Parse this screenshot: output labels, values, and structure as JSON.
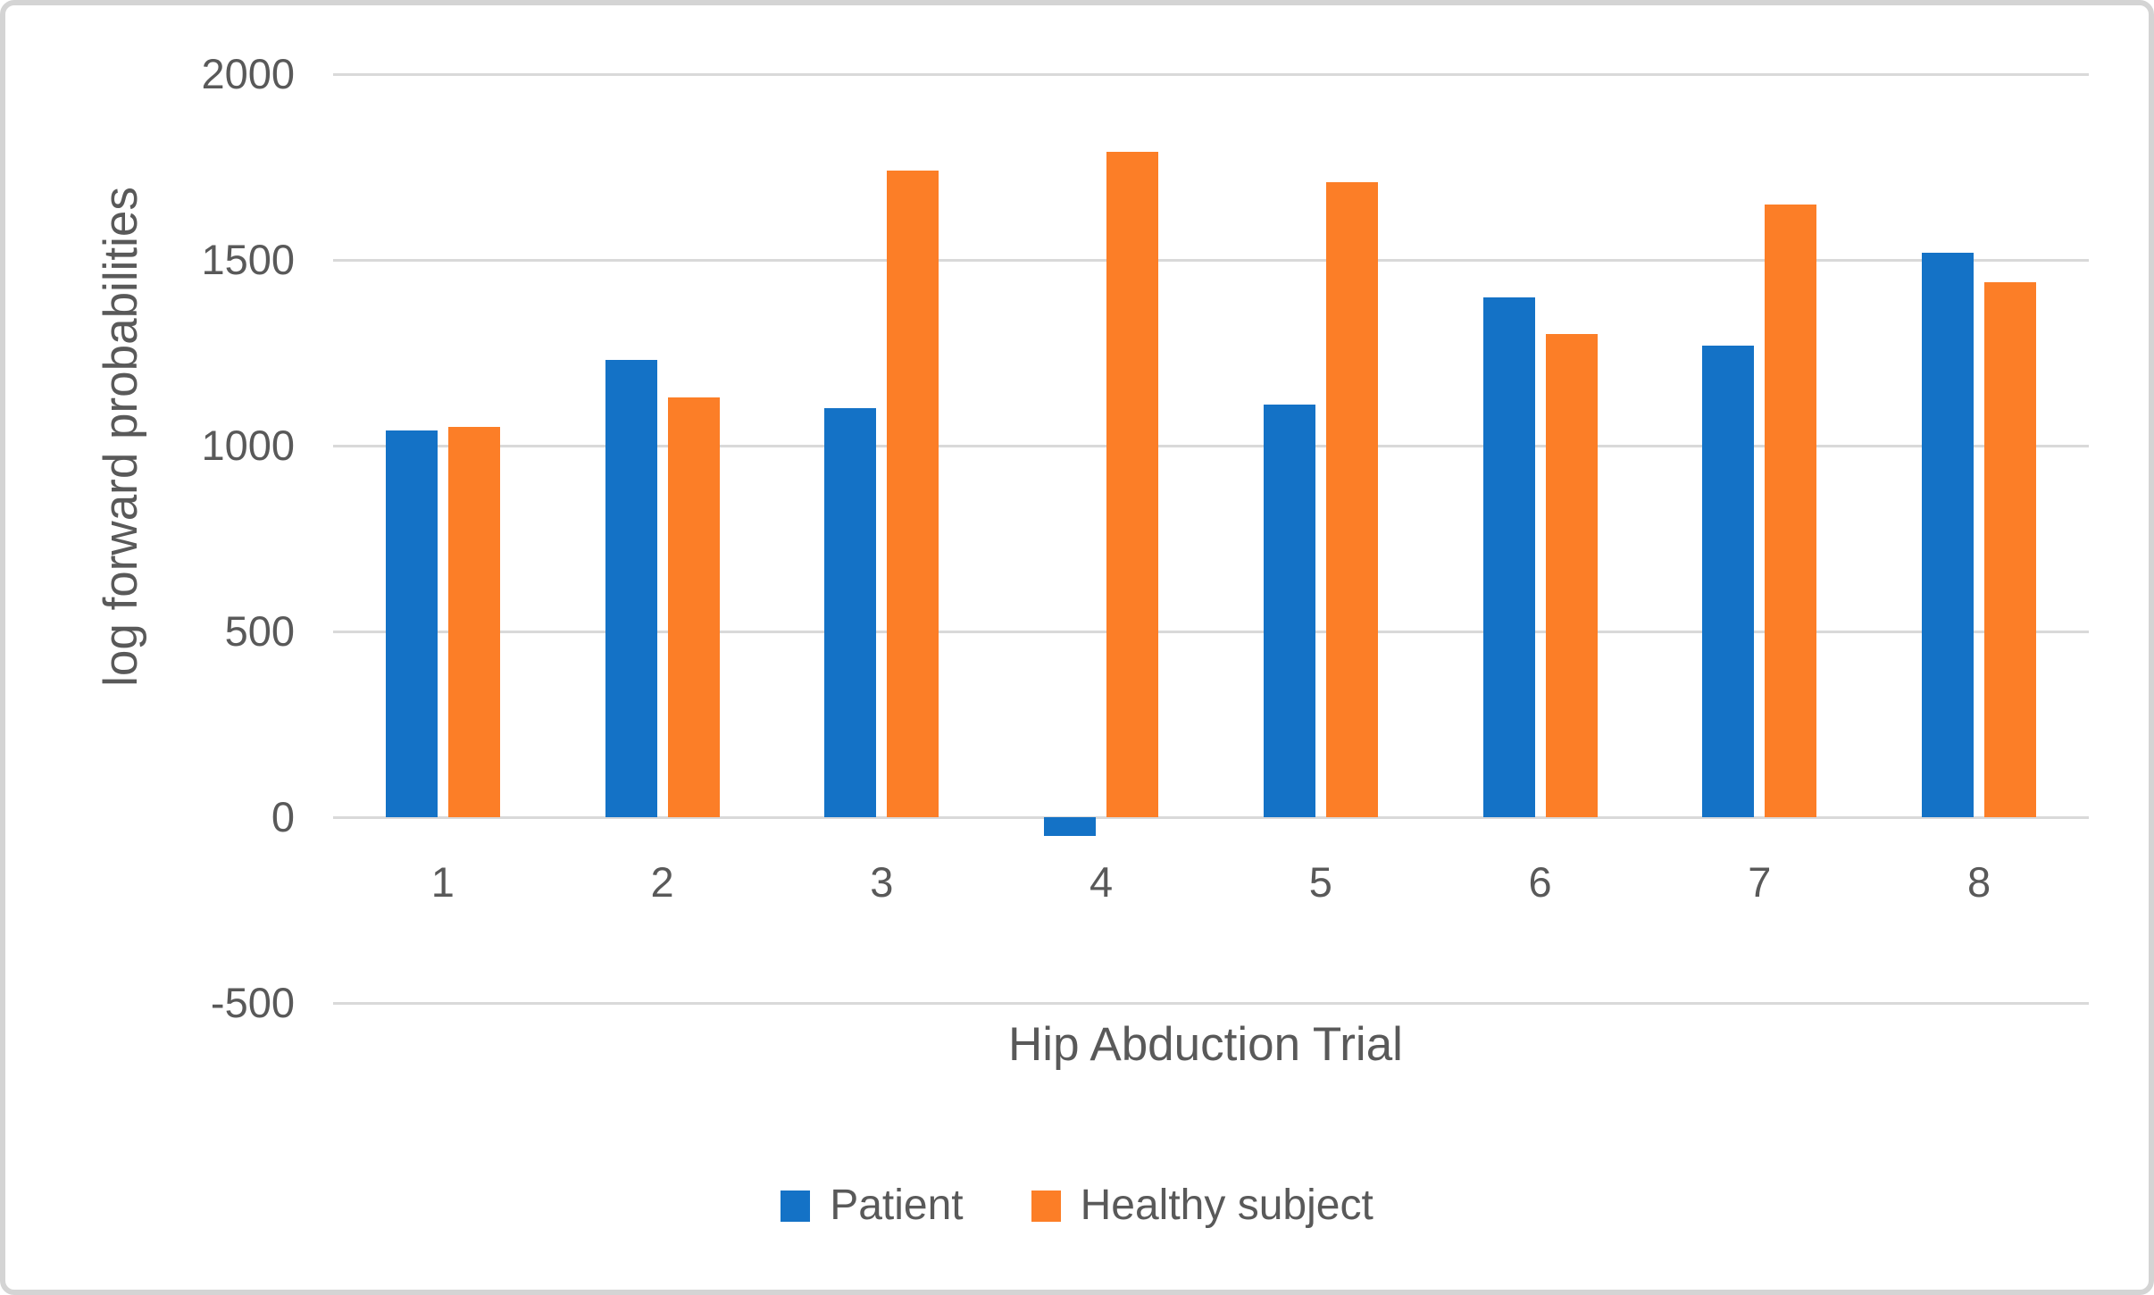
{
  "chart_data": {
    "type": "bar",
    "title": "",
    "categories": [
      "1",
      "2",
      "3",
      "4",
      "5",
      "6",
      "7",
      "8"
    ],
    "series": [
      {
        "name": "Patient",
        "color": "#1472C6",
        "values": [
          1040,
          1230,
          1100,
          -50,
          1110,
          1400,
          1270,
          1520
        ]
      },
      {
        "name": "Healthy subject",
        "color": "#FC7E27",
        "values": [
          1050,
          1130,
          1740,
          1790,
          1710,
          1300,
          1650,
          1440
        ]
      }
    ],
    "xlabel": "Hip Abduction Trial",
    "ylabel": "log forward probabilities",
    "ylim": [
      -500,
      2000
    ],
    "y_ticks": [
      2000,
      1500,
      1000,
      500,
      0,
      -500
    ],
    "grid": true,
    "legend_position": "bottom",
    "gridline_color": "#D9D9D9",
    "text_color": "#595959"
  }
}
